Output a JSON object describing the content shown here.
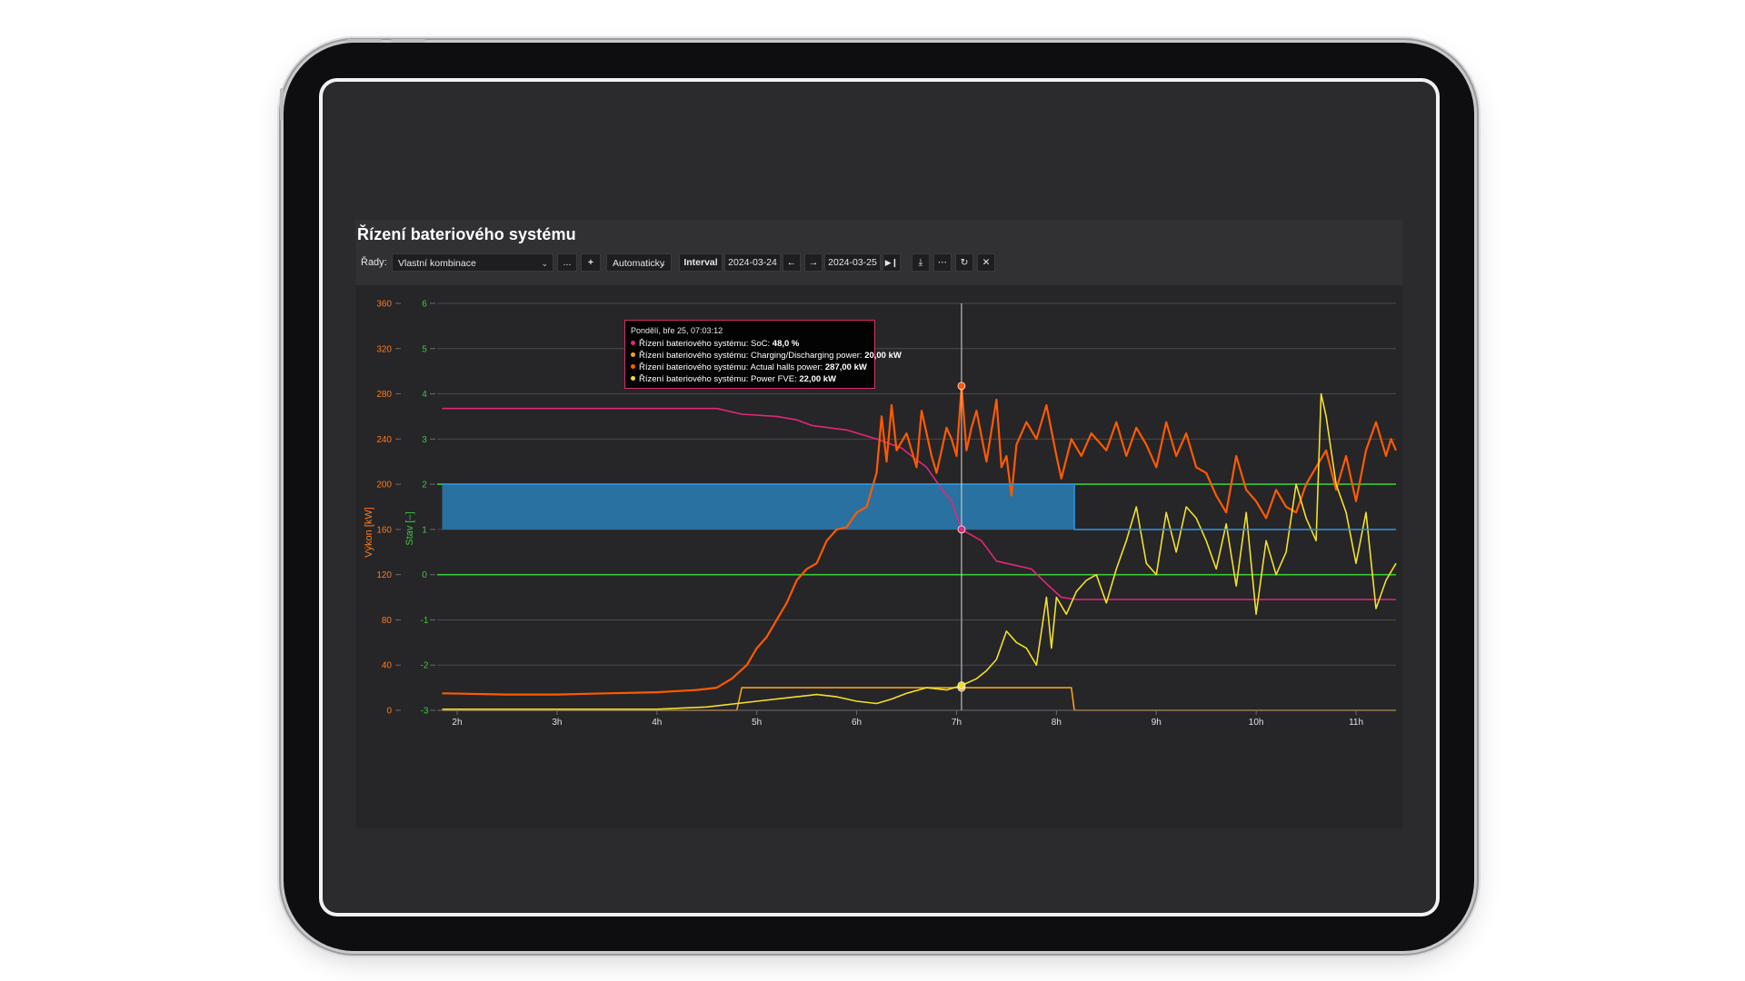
{
  "app": {
    "title": "Řízení bateriového systému",
    "toolbar": {
      "series_label": "Řady:",
      "series_value": "Vlastní kombinace",
      "more_label": "...",
      "add_label": "+",
      "mode_value": "Automaticky",
      "interval_label": "Interval",
      "date_from": "2024-03-24",
      "date_to": "2024-03-25",
      "prev_icon": "arrow-left-icon",
      "next_icon": "arrow-right-icon",
      "end_icon": "skip-end-icon",
      "download_icon": "download-icon",
      "menu_icon": "more-icon",
      "refresh_icon": "refresh-icon",
      "close_icon": "close-icon"
    }
  },
  "tooltip": {
    "title": "Pondělí, bře 25, 07:03:12",
    "rows": [
      {
        "label": "Řízení bateriového systému: SoC: ",
        "value": "48,0 %",
        "color": "#e0287a"
      },
      {
        "label": "Řízení bateriového systému: Charging/Discharging power: ",
        "value": "20,00 kW",
        "color": "#f3a21a"
      },
      {
        "label": "Řízení bateriového systému: Actual halls power: ",
        "value": "287,00 kW",
        "color": "#ff5a00"
      },
      {
        "label": "Řízení bateriového systému: Power FVE: ",
        "value": "22,00 kW",
        "color": "#f2e02a"
      }
    ]
  },
  "chart_data": {
    "type": "line",
    "x_unit": "hours",
    "xlim": [
      1.8,
      11.4
    ],
    "x_ticks": [
      "2h",
      "3h",
      "4h",
      "5h",
      "6h",
      "7h",
      "8h",
      "9h",
      "10h",
      "11h"
    ],
    "y_left": {
      "label": "Výkon [kW]",
      "ylim": [
        0,
        360
      ],
      "ticks": [
        0,
        40,
        80,
        120,
        160,
        200,
        240,
        280,
        320,
        360
      ],
      "color": "#ff7a1a"
    },
    "y_right": {
      "label": "Stav [–]",
      "ylim": [
        -3,
        6
      ],
      "ticks": [
        -3,
        -2,
        -1,
        0,
        1,
        2,
        3,
        4,
        5,
        6
      ],
      "color": "#3cc93c"
    },
    "cursor_x": 7.05,
    "grid": true,
    "series": [
      {
        "name": "Řízení bateriového systému: SoC",
        "axis": "left",
        "color": "#e0287a",
        "points": [
          [
            1.85,
            267
          ],
          [
            4.6,
            267
          ],
          [
            4.85,
            262
          ],
          [
            5.2,
            260
          ],
          [
            5.4,
            257
          ],
          [
            5.55,
            252
          ],
          [
            5.9,
            248
          ],
          [
            6.2,
            240
          ],
          [
            6.45,
            232
          ],
          [
            6.55,
            225
          ],
          [
            6.7,
            215
          ],
          [
            6.85,
            196
          ],
          [
            6.95,
            185
          ],
          [
            7.05,
            160
          ],
          [
            7.25,
            150
          ],
          [
            7.4,
            132
          ],
          [
            7.6,
            128
          ],
          [
            7.75,
            125
          ],
          [
            7.9,
            112
          ],
          [
            8.05,
            100
          ],
          [
            8.2,
            98
          ],
          [
            11.4,
            98
          ]
        ]
      },
      {
        "name": "Řízení bateriového systému: Charging/Discharging power",
        "axis": "left",
        "color": "#f3a21a",
        "points": [
          [
            1.85,
            0
          ],
          [
            4.8,
            0
          ],
          [
            4.85,
            20
          ],
          [
            8.15,
            20
          ],
          [
            8.18,
            0
          ],
          [
            11.4,
            0
          ]
        ]
      },
      {
        "name": "Řízení bateriového systému: Actual halls power",
        "axis": "left",
        "color": "#ff5a00",
        "points": [
          [
            1.85,
            15
          ],
          [
            2.5,
            14
          ],
          [
            3.0,
            14
          ],
          [
            3.5,
            15
          ],
          [
            4.0,
            16
          ],
          [
            4.4,
            18
          ],
          [
            4.6,
            20
          ],
          [
            4.75,
            28
          ],
          [
            4.9,
            40
          ],
          [
            5.0,
            55
          ],
          [
            5.1,
            65
          ],
          [
            5.2,
            80
          ],
          [
            5.3,
            95
          ],
          [
            5.4,
            115
          ],
          [
            5.5,
            125
          ],
          [
            5.6,
            130
          ],
          [
            5.7,
            150
          ],
          [
            5.8,
            160
          ],
          [
            5.9,
            162
          ],
          [
            6.0,
            175
          ],
          [
            6.1,
            180
          ],
          [
            6.15,
            195
          ],
          [
            6.2,
            210
          ],
          [
            6.25,
            260
          ],
          [
            6.3,
            220
          ],
          [
            6.35,
            270
          ],
          [
            6.4,
            230
          ],
          [
            6.5,
            245
          ],
          [
            6.6,
            215
          ],
          [
            6.65,
            265
          ],
          [
            6.75,
            225
          ],
          [
            6.8,
            210
          ],
          [
            6.9,
            250
          ],
          [
            6.95,
            240
          ],
          [
            7.0,
            225
          ],
          [
            7.05,
            287
          ],
          [
            7.1,
            230
          ],
          [
            7.15,
            250
          ],
          [
            7.2,
            265
          ],
          [
            7.3,
            220
          ],
          [
            7.4,
            275
          ],
          [
            7.45,
            215
          ],
          [
            7.5,
            225
          ],
          [
            7.55,
            190
          ],
          [
            7.6,
            235
          ],
          [
            7.7,
            255
          ],
          [
            7.8,
            240
          ],
          [
            7.9,
            270
          ],
          [
            8.0,
            225
          ],
          [
            8.05,
            205
          ],
          [
            8.15,
            240
          ],
          [
            8.25,
            225
          ],
          [
            8.35,
            245
          ],
          [
            8.5,
            230
          ],
          [
            8.6,
            255
          ],
          [
            8.7,
            225
          ],
          [
            8.8,
            250
          ],
          [
            8.9,
            235
          ],
          [
            9.0,
            215
          ],
          [
            9.1,
            255
          ],
          [
            9.2,
            225
          ],
          [
            9.3,
            245
          ],
          [
            9.4,
            215
          ],
          [
            9.5,
            210
          ],
          [
            9.6,
            190
          ],
          [
            9.7,
            175
          ],
          [
            9.8,
            225
          ],
          [
            9.9,
            195
          ],
          [
            10.0,
            185
          ],
          [
            10.1,
            170
          ],
          [
            10.2,
            195
          ],
          [
            10.3,
            180
          ],
          [
            10.4,
            175
          ],
          [
            10.5,
            200
          ],
          [
            10.6,
            215
          ],
          [
            10.7,
            230
          ],
          [
            10.8,
            195
          ],
          [
            10.9,
            225
          ],
          [
            11.0,
            185
          ],
          [
            11.1,
            230
          ],
          [
            11.2,
            255
          ],
          [
            11.3,
            225
          ],
          [
            11.35,
            240
          ],
          [
            11.4,
            230
          ]
        ]
      },
      {
        "name": "Řízení bateriového systému: Power FVE",
        "axis": "left",
        "color": "#f2e02a",
        "points": [
          [
            1.85,
            1
          ],
          [
            4.0,
            1
          ],
          [
            4.5,
            3
          ],
          [
            5.0,
            8
          ],
          [
            5.4,
            12
          ],
          [
            5.6,
            14
          ],
          [
            5.8,
            12
          ],
          [
            6.0,
            8
          ],
          [
            6.2,
            6
          ],
          [
            6.35,
            10
          ],
          [
            6.5,
            15
          ],
          [
            6.7,
            20
          ],
          [
            6.9,
            18
          ],
          [
            7.05,
            22
          ],
          [
            7.2,
            28
          ],
          [
            7.3,
            35
          ],
          [
            7.4,
            45
          ],
          [
            7.5,
            70
          ],
          [
            7.6,
            60
          ],
          [
            7.7,
            55
          ],
          [
            7.8,
            40
          ],
          [
            7.9,
            100
          ],
          [
            7.95,
            55
          ],
          [
            8.0,
            100
          ],
          [
            8.1,
            85
          ],
          [
            8.2,
            105
          ],
          [
            8.3,
            115
          ],
          [
            8.4,
            120
          ],
          [
            8.5,
            95
          ],
          [
            8.6,
            125
          ],
          [
            8.7,
            150
          ],
          [
            8.8,
            180
          ],
          [
            8.9,
            130
          ],
          [
            9.0,
            120
          ],
          [
            9.1,
            175
          ],
          [
            9.2,
            140
          ],
          [
            9.3,
            180
          ],
          [
            9.4,
            170
          ],
          [
            9.5,
            150
          ],
          [
            9.6,
            125
          ],
          [
            9.7,
            165
          ],
          [
            9.8,
            110
          ],
          [
            9.9,
            175
          ],
          [
            10.0,
            85
          ],
          [
            10.1,
            150
          ],
          [
            10.2,
            120
          ],
          [
            10.3,
            140
          ],
          [
            10.4,
            200
          ],
          [
            10.5,
            170
          ],
          [
            10.6,
            150
          ],
          [
            10.65,
            280
          ],
          [
            10.7,
            260
          ],
          [
            10.8,
            200
          ],
          [
            10.9,
            175
          ],
          [
            11.0,
            130
          ],
          [
            11.1,
            175
          ],
          [
            11.2,
            90
          ],
          [
            11.3,
            115
          ],
          [
            11.4,
            130
          ]
        ]
      },
      {
        "name": "Stav",
        "axis": "right",
        "color": "#2e8fd9",
        "points": [
          [
            1.85,
            2
          ],
          [
            8.18,
            2
          ],
          [
            8.18,
            1
          ],
          [
            11.4,
            1
          ]
        ]
      }
    ]
  }
}
